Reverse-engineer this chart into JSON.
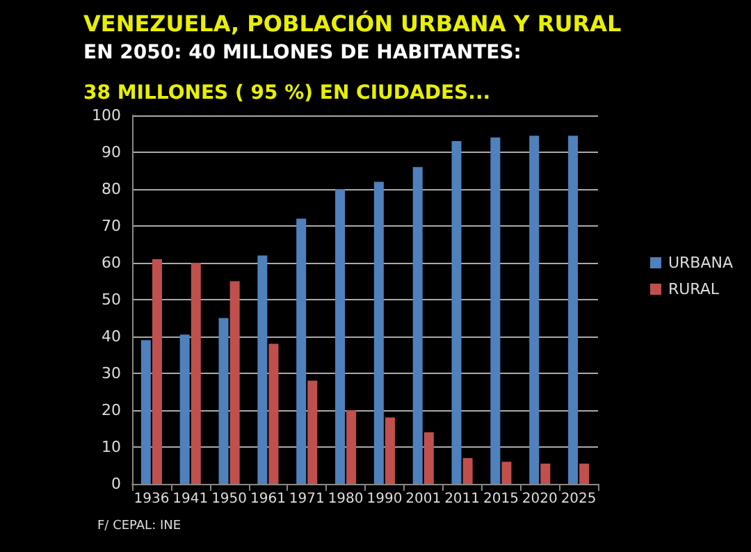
{
  "chart_data": {
    "type": "bar",
    "title": "VENEZUELA, POBLACIÓN URBANA Y RURAL",
    "subtitle": "EN 2050: 40 MILLONES DE HABITANTES:",
    "annotations": [
      "38 MILLONES ( 95 %) EN CIUDADES...",
      "F/ CEPAL: INE"
    ],
    "categories": [
      "1936",
      "1941",
      "1950",
      "1961",
      "1971",
      "1980",
      "1990",
      "2001",
      "2011",
      "2015",
      "2020",
      "2025"
    ],
    "series": [
      {
        "name": "URBANA",
        "color": "#4f81bd",
        "values": [
          39,
          40.5,
          45,
          62,
          72,
          80,
          82,
          86,
          93,
          94,
          94.5,
          94.5
        ]
      },
      {
        "name": "RURAL",
        "color": "#c0504d",
        "values": [
          61,
          60,
          55,
          38,
          28,
          20,
          18,
          14,
          7,
          6,
          5.5,
          5.5
        ]
      }
    ],
    "ylim": [
      0,
      100
    ],
    "yticks": [
      0,
      10,
      20,
      30,
      40,
      50,
      60,
      70,
      80,
      90,
      100
    ],
    "grid": "y",
    "legend": "right"
  }
}
